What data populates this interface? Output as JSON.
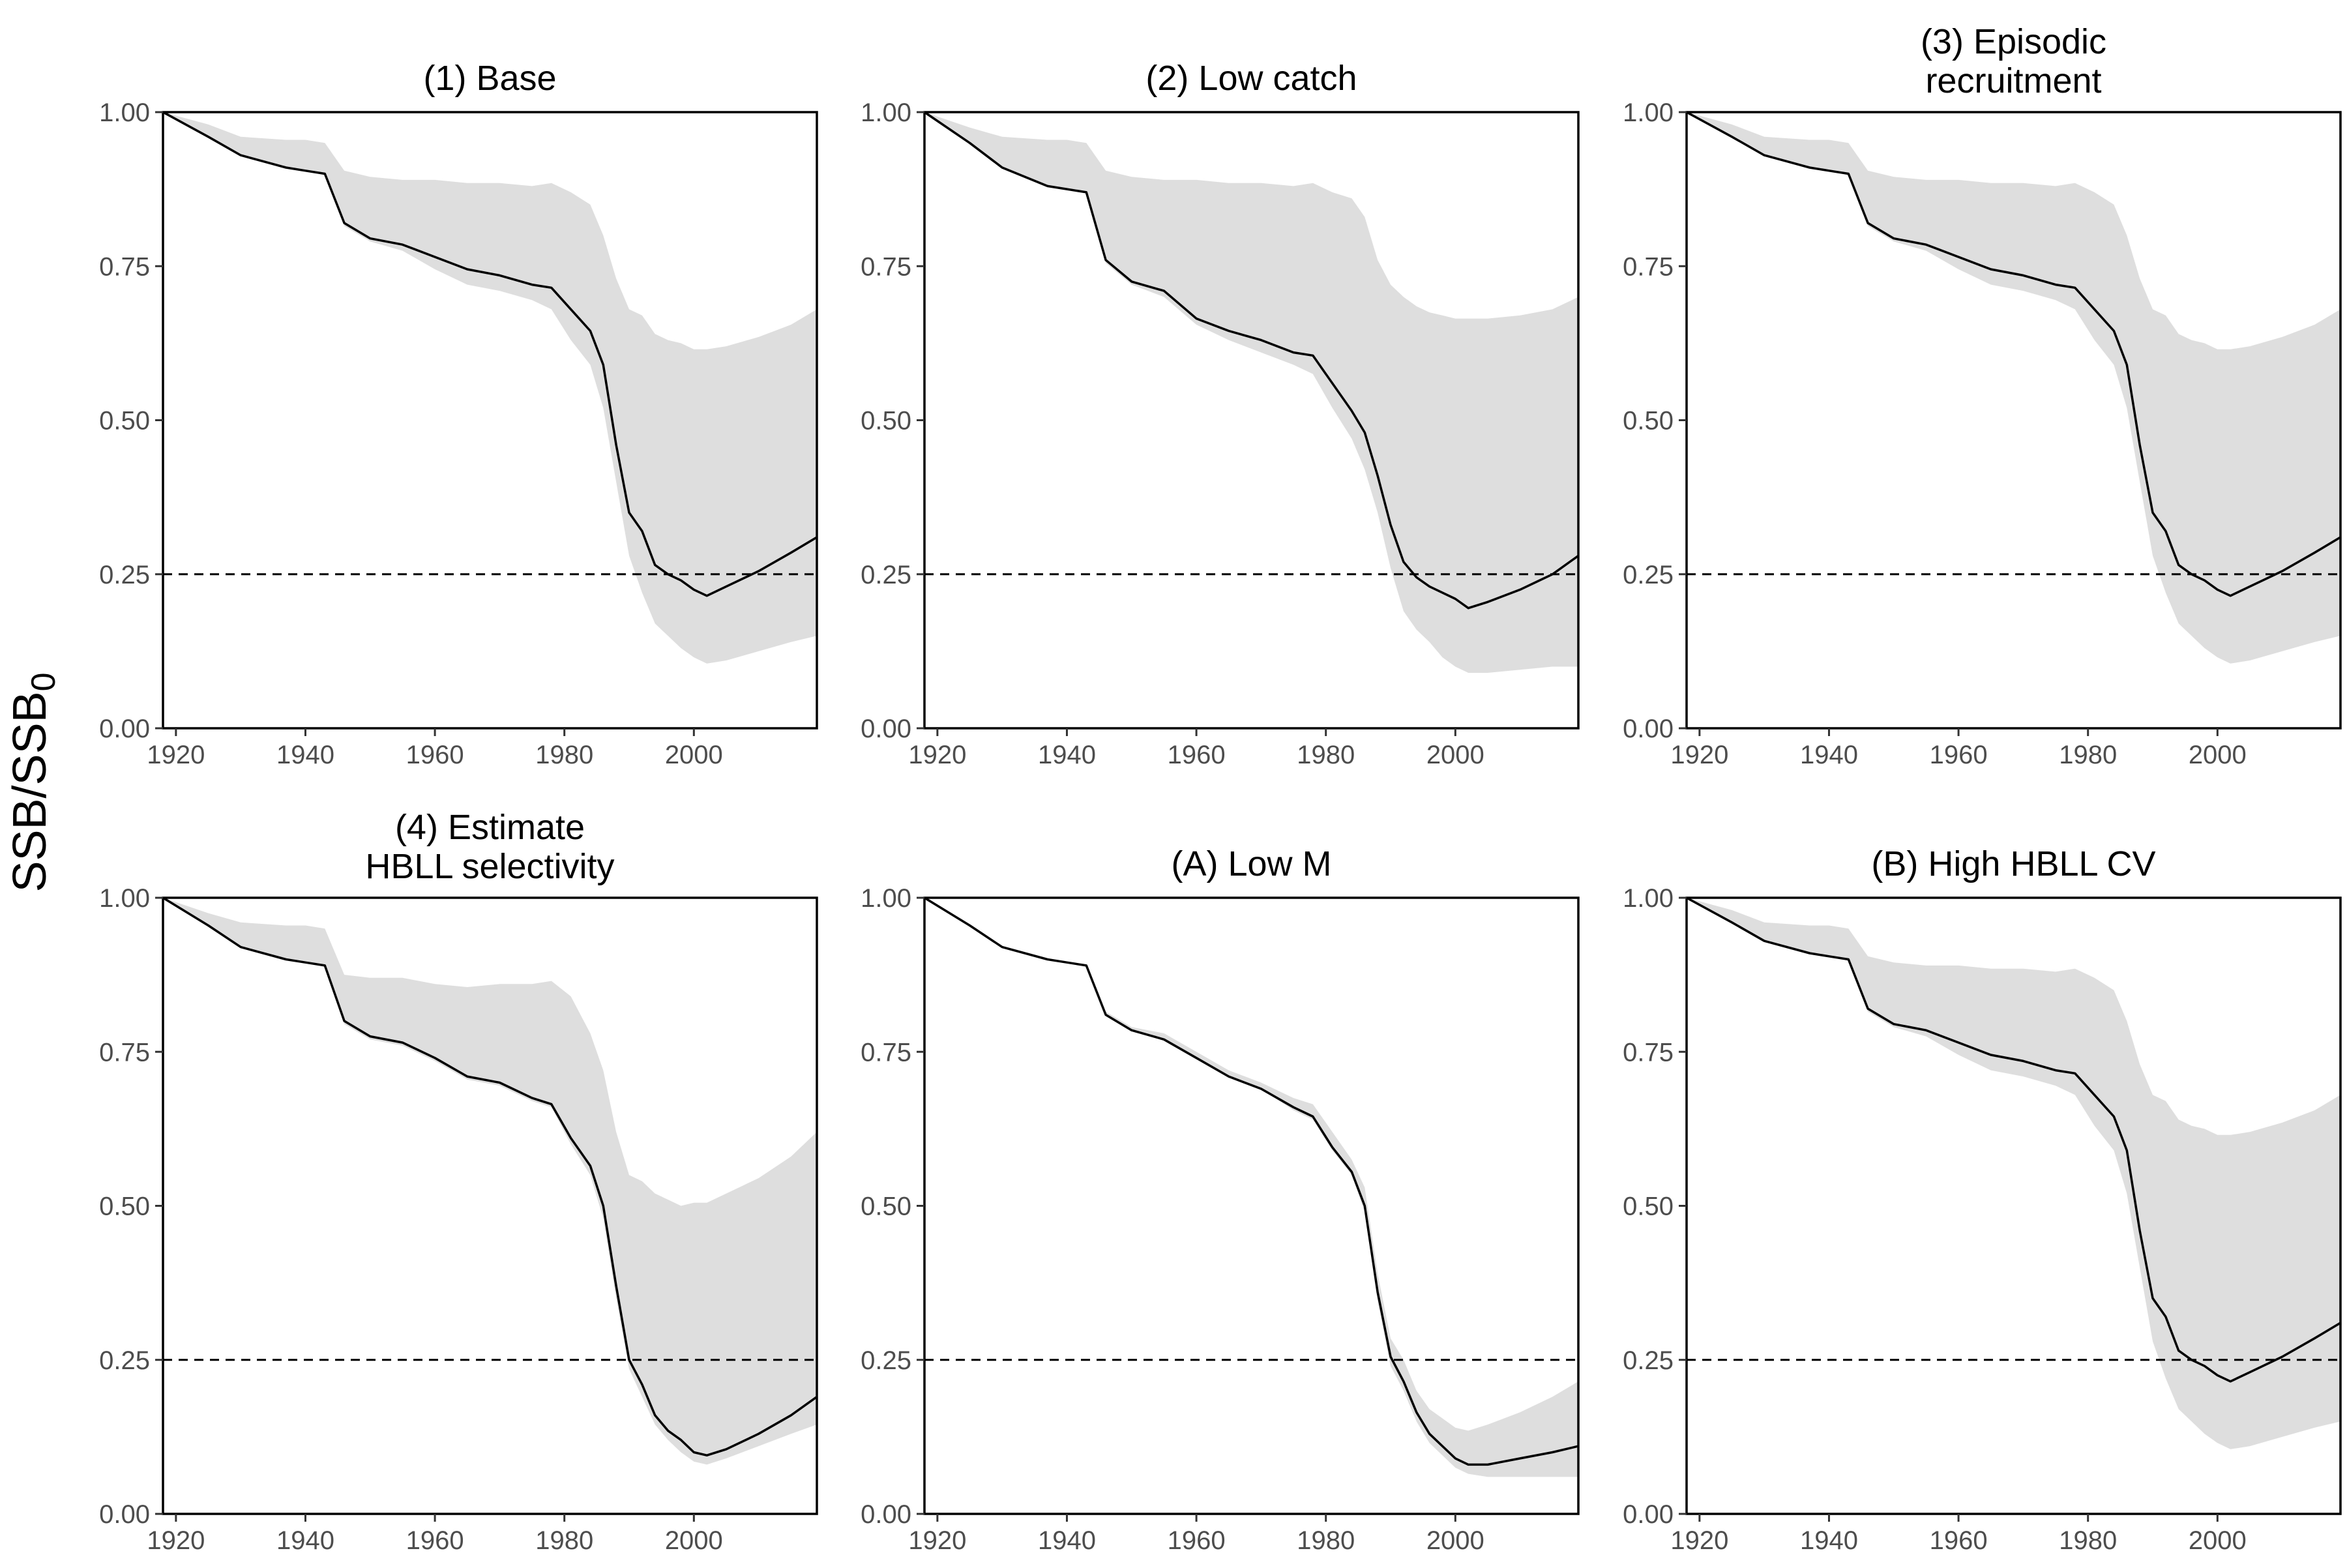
{
  "chart_data": {
    "type": "area",
    "ylabel": "SSB/SSB",
    "ylabel_subscript": "0",
    "xlim": [
      1918,
      2019
    ],
    "ylim": [
      0,
      1
    ],
    "x_ticks": [
      1920,
      1940,
      1960,
      1980,
      2000
    ],
    "x_tick_labels": [
      "1920",
      "1940",
      "1960",
      "1980",
      "2000"
    ],
    "y_ticks": [
      0,
      0.25,
      0.5,
      0.75,
      1.0
    ],
    "y_tick_labels": [
      "0.00",
      "0.25",
      "0.50",
      "0.75",
      "1.00"
    ],
    "reference_line": 0.25,
    "grid": false,
    "band_color": "#dedede",
    "line_color": "#000000",
    "panels": [
      {
        "title": "(1) Base",
        "x": [
          1918,
          1925,
          1930,
          1937,
          1940,
          1943,
          1946,
          1950,
          1955,
          1960,
          1965,
          1970,
          1975,
          1978,
          1981,
          1984,
          1986,
          1988,
          1990,
          1992,
          1994,
          1996,
          1998,
          2000,
          2002,
          2005,
          2010,
          2015,
          2019
        ],
        "median": [
          1.0,
          0.96,
          0.93,
          0.91,
          0.905,
          0.9,
          0.82,
          0.795,
          0.785,
          0.765,
          0.745,
          0.735,
          0.72,
          0.715,
          0.68,
          0.645,
          0.59,
          0.46,
          0.35,
          0.32,
          0.265,
          0.25,
          0.24,
          0.225,
          0.215,
          0.23,
          0.255,
          0.285,
          0.31
        ],
        "lower": [
          1.0,
          0.96,
          0.93,
          0.91,
          0.905,
          0.9,
          0.815,
          0.79,
          0.775,
          0.745,
          0.72,
          0.71,
          0.695,
          0.68,
          0.63,
          0.59,
          0.52,
          0.4,
          0.28,
          0.22,
          0.17,
          0.15,
          0.13,
          0.115,
          0.105,
          0.11,
          0.125,
          0.14,
          0.15
        ],
        "upper": [
          1.0,
          0.98,
          0.96,
          0.955,
          0.955,
          0.95,
          0.905,
          0.895,
          0.89,
          0.89,
          0.885,
          0.885,
          0.88,
          0.885,
          0.87,
          0.85,
          0.8,
          0.73,
          0.68,
          0.67,
          0.64,
          0.63,
          0.625,
          0.615,
          0.615,
          0.62,
          0.635,
          0.655,
          0.68
        ]
      },
      {
        "title": "(2) Low catch",
        "x": [
          1918,
          1925,
          1930,
          1937,
          1940,
          1943,
          1946,
          1950,
          1955,
          1960,
          1965,
          1970,
          1975,
          1978,
          1981,
          1984,
          1986,
          1988,
          1990,
          1992,
          1994,
          1996,
          1998,
          2000,
          2002,
          2005,
          2010,
          2015,
          2019
        ],
        "median": [
          1.0,
          0.95,
          0.91,
          0.88,
          0.875,
          0.87,
          0.76,
          0.725,
          0.71,
          0.665,
          0.645,
          0.63,
          0.61,
          0.605,
          0.56,
          0.515,
          0.48,
          0.41,
          0.33,
          0.27,
          0.245,
          0.23,
          0.22,
          0.21,
          0.195,
          0.205,
          0.225,
          0.25,
          0.28
        ],
        "lower": [
          1.0,
          0.95,
          0.91,
          0.88,
          0.875,
          0.87,
          0.755,
          0.72,
          0.7,
          0.655,
          0.63,
          0.61,
          0.59,
          0.575,
          0.52,
          0.47,
          0.42,
          0.35,
          0.26,
          0.19,
          0.16,
          0.14,
          0.115,
          0.1,
          0.09,
          0.09,
          0.095,
          0.1,
          0.1
        ],
        "upper": [
          1.0,
          0.975,
          0.96,
          0.955,
          0.955,
          0.95,
          0.905,
          0.895,
          0.89,
          0.89,
          0.885,
          0.885,
          0.88,
          0.885,
          0.87,
          0.86,
          0.83,
          0.76,
          0.72,
          0.7,
          0.685,
          0.675,
          0.67,
          0.665,
          0.665,
          0.665,
          0.67,
          0.68,
          0.7
        ]
      },
      {
        "title": "(3) Episodic recruitment",
        "title_lines": [
          "(3) Episodic",
          "recruitment"
        ],
        "x": [
          1918,
          1925,
          1930,
          1937,
          1940,
          1943,
          1946,
          1950,
          1955,
          1960,
          1965,
          1970,
          1975,
          1978,
          1981,
          1984,
          1986,
          1988,
          1990,
          1992,
          1994,
          1996,
          1998,
          2000,
          2002,
          2005,
          2010,
          2015,
          2019
        ],
        "median": [
          1.0,
          0.96,
          0.93,
          0.91,
          0.905,
          0.9,
          0.82,
          0.795,
          0.785,
          0.765,
          0.745,
          0.735,
          0.72,
          0.715,
          0.68,
          0.645,
          0.59,
          0.46,
          0.35,
          0.32,
          0.265,
          0.25,
          0.24,
          0.225,
          0.215,
          0.23,
          0.255,
          0.285,
          0.31
        ],
        "lower": [
          1.0,
          0.96,
          0.93,
          0.91,
          0.905,
          0.9,
          0.815,
          0.79,
          0.775,
          0.745,
          0.72,
          0.71,
          0.695,
          0.68,
          0.63,
          0.59,
          0.52,
          0.4,
          0.28,
          0.22,
          0.17,
          0.15,
          0.13,
          0.115,
          0.105,
          0.11,
          0.125,
          0.14,
          0.15
        ],
        "upper": [
          1.0,
          0.98,
          0.96,
          0.955,
          0.955,
          0.95,
          0.905,
          0.895,
          0.89,
          0.89,
          0.885,
          0.885,
          0.88,
          0.885,
          0.87,
          0.85,
          0.8,
          0.73,
          0.68,
          0.67,
          0.64,
          0.63,
          0.625,
          0.615,
          0.615,
          0.62,
          0.635,
          0.655,
          0.68
        ]
      },
      {
        "title": "(4) Estimate HBLL selectivity",
        "title_lines": [
          "(4) Estimate",
          "HBLL selectivity"
        ],
        "x": [
          1918,
          1925,
          1930,
          1937,
          1940,
          1943,
          1946,
          1950,
          1955,
          1960,
          1965,
          1970,
          1975,
          1978,
          1981,
          1984,
          1986,
          1988,
          1990,
          1992,
          1994,
          1996,
          1998,
          2000,
          2002,
          2005,
          2010,
          2015,
          2019
        ],
        "median": [
          1.0,
          0.955,
          0.92,
          0.9,
          0.895,
          0.89,
          0.8,
          0.775,
          0.765,
          0.74,
          0.71,
          0.7,
          0.675,
          0.665,
          0.61,
          0.565,
          0.5,
          0.37,
          0.25,
          0.21,
          0.16,
          0.135,
          0.12,
          0.1,
          0.095,
          0.105,
          0.13,
          0.16,
          0.19
        ],
        "lower": [
          1.0,
          0.955,
          0.92,
          0.9,
          0.895,
          0.89,
          0.795,
          0.77,
          0.76,
          0.735,
          0.705,
          0.695,
          0.67,
          0.66,
          0.6,
          0.55,
          0.48,
          0.35,
          0.235,
          0.19,
          0.145,
          0.12,
          0.1,
          0.085,
          0.08,
          0.09,
          0.11,
          0.13,
          0.145
        ],
        "upper": [
          1.0,
          0.975,
          0.96,
          0.955,
          0.955,
          0.95,
          0.875,
          0.87,
          0.87,
          0.86,
          0.855,
          0.86,
          0.86,
          0.865,
          0.84,
          0.78,
          0.72,
          0.62,
          0.55,
          0.54,
          0.52,
          0.51,
          0.5,
          0.505,
          0.505,
          0.52,
          0.545,
          0.58,
          0.62
        ]
      },
      {
        "title": "(A) Low M",
        "x": [
          1918,
          1925,
          1930,
          1937,
          1940,
          1943,
          1946,
          1950,
          1955,
          1960,
          1965,
          1970,
          1975,
          1978,
          1981,
          1984,
          1986,
          1988,
          1990,
          1992,
          1994,
          1996,
          1998,
          2000,
          2002,
          2005,
          2010,
          2015,
          2019
        ],
        "median": [
          1.0,
          0.955,
          0.92,
          0.9,
          0.895,
          0.89,
          0.81,
          0.785,
          0.77,
          0.74,
          0.71,
          0.69,
          0.66,
          0.645,
          0.595,
          0.555,
          0.5,
          0.36,
          0.255,
          0.215,
          0.165,
          0.13,
          0.11,
          0.09,
          0.08,
          0.08,
          0.09,
          0.1,
          0.11
        ],
        "lower": [
          1.0,
          0.955,
          0.92,
          0.9,
          0.895,
          0.89,
          0.81,
          0.785,
          0.77,
          0.74,
          0.71,
          0.69,
          0.655,
          0.64,
          0.59,
          0.55,
          0.49,
          0.345,
          0.24,
          0.2,
          0.15,
          0.115,
          0.095,
          0.075,
          0.065,
          0.06,
          0.06,
          0.06,
          0.06
        ],
        "upper": [
          1.0,
          0.955,
          0.92,
          0.9,
          0.895,
          0.89,
          0.815,
          0.79,
          0.78,
          0.75,
          0.72,
          0.7,
          0.675,
          0.665,
          0.62,
          0.575,
          0.53,
          0.39,
          0.285,
          0.25,
          0.2,
          0.17,
          0.155,
          0.14,
          0.135,
          0.145,
          0.165,
          0.19,
          0.215
        ]
      },
      {
        "title": "(B) High HBLL CV",
        "x": [
          1918,
          1925,
          1930,
          1937,
          1940,
          1943,
          1946,
          1950,
          1955,
          1960,
          1965,
          1970,
          1975,
          1978,
          1981,
          1984,
          1986,
          1988,
          1990,
          1992,
          1994,
          1996,
          1998,
          2000,
          2002,
          2005,
          2010,
          2015,
          2019
        ],
        "median": [
          1.0,
          0.96,
          0.93,
          0.91,
          0.905,
          0.9,
          0.82,
          0.795,
          0.785,
          0.765,
          0.745,
          0.735,
          0.72,
          0.715,
          0.68,
          0.645,
          0.59,
          0.46,
          0.35,
          0.32,
          0.265,
          0.25,
          0.24,
          0.225,
          0.215,
          0.23,
          0.255,
          0.285,
          0.31
        ],
        "lower": [
          1.0,
          0.96,
          0.93,
          0.91,
          0.905,
          0.9,
          0.815,
          0.79,
          0.775,
          0.745,
          0.72,
          0.71,
          0.695,
          0.68,
          0.63,
          0.59,
          0.52,
          0.4,
          0.28,
          0.22,
          0.17,
          0.15,
          0.13,
          0.115,
          0.105,
          0.11,
          0.125,
          0.14,
          0.15
        ],
        "upper": [
          1.0,
          0.98,
          0.96,
          0.955,
          0.955,
          0.95,
          0.905,
          0.895,
          0.89,
          0.89,
          0.885,
          0.885,
          0.88,
          0.885,
          0.87,
          0.85,
          0.8,
          0.73,
          0.68,
          0.67,
          0.64,
          0.63,
          0.625,
          0.615,
          0.615,
          0.62,
          0.635,
          0.655,
          0.68
        ]
      }
    ]
  }
}
